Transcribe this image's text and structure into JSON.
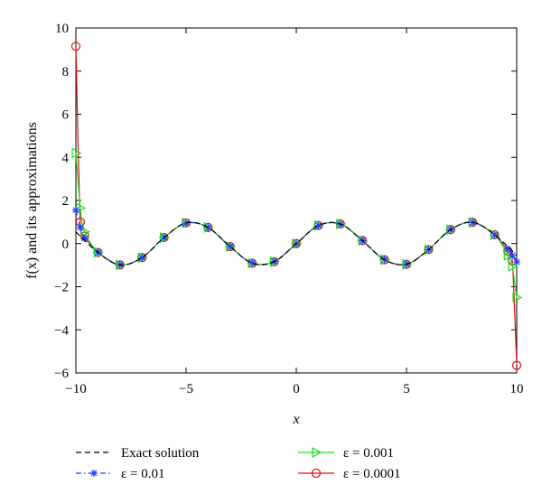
{
  "chart_data": {
    "type": "line",
    "title": "",
    "xlabel": "x",
    "ylabel": "f(x) and its approximations",
    "xlim": [
      -10,
      10
    ],
    "ylim": [
      -6,
      10
    ],
    "xticks": [
      -10,
      -5,
      0,
      5,
      10
    ],
    "yticks": [
      -6,
      -4,
      -2,
      0,
      2,
      4,
      6,
      8,
      10
    ],
    "xtick_labels": [
      "−10",
      "−5",
      "0",
      "5",
      "10"
    ],
    "ytick_labels": [
      "−6",
      "−4",
      "−2",
      "0",
      "2",
      "4",
      "6",
      "8",
      "10"
    ],
    "grid": false,
    "legend_position": "bottom",
    "series": [
      {
        "name": "Exact solution",
        "color": "#000000",
        "dash": "dashed",
        "marker": "none",
        "x": [
          -10,
          -9,
          -8,
          -7,
          -6,
          -5,
          -4,
          -3,
          -2,
          -1,
          0,
          1,
          2,
          3,
          4,
          5,
          6,
          7,
          8,
          9,
          10
        ],
        "y": [
          0.54,
          -0.41,
          -0.99,
          -0.65,
          0.28,
          0.96,
          0.75,
          -0.14,
          -0.91,
          -0.84,
          0,
          0.84,
          0.91,
          0.14,
          -0.75,
          -0.96,
          -0.28,
          0.65,
          0.99,
          0.41,
          -0.54
        ]
      },
      {
        "name": "ε = 0.01",
        "color": "#1f3fff",
        "dash": "dashdot",
        "marker": "star",
        "x": [
          -10,
          -9.8,
          -9.6,
          -9,
          -8,
          -7,
          -6,
          -5,
          -4,
          -3,
          -2,
          -1,
          0,
          1,
          2,
          3,
          4,
          5,
          6,
          7,
          8,
          9,
          9.6,
          9.8,
          10
        ],
        "y": [
          1.55,
          0.75,
          0.25,
          -0.4,
          -0.98,
          -0.65,
          0.28,
          0.95,
          0.74,
          -0.14,
          -0.9,
          -0.83,
          0,
          0.83,
          0.9,
          0.14,
          -0.74,
          -0.95,
          -0.28,
          0.65,
          0.98,
          0.4,
          -0.25,
          -0.55,
          -0.85
        ]
      },
      {
        "name": "ε = 0.001",
        "color": "#22dd22",
        "dash": "solid",
        "marker": "triangle-right",
        "x": [
          -10,
          -9.8,
          -9.6,
          -9,
          -8,
          -7,
          -6,
          -5,
          -4,
          -3,
          -2,
          -1,
          0,
          1,
          2,
          3,
          4,
          5,
          6,
          7,
          8,
          9,
          9.6,
          9.8,
          10
        ],
        "y": [
          4.2,
          1.65,
          0.55,
          -0.4,
          -0.99,
          -0.65,
          0.28,
          0.96,
          0.75,
          -0.14,
          -0.91,
          -0.84,
          0,
          0.84,
          0.91,
          0.14,
          -0.75,
          -0.96,
          -0.28,
          0.65,
          0.99,
          0.41,
          -0.55,
          -1.05,
          -2.5
        ]
      },
      {
        "name": "ε = 0.0001",
        "color": "#dd1111",
        "dash": "solid",
        "marker": "circle",
        "x": [
          -10,
          -9.8,
          -9.6,
          -9,
          -8,
          -7,
          -6,
          -5,
          -4,
          -3,
          -2,
          -1,
          0,
          1,
          2,
          3,
          4,
          5,
          6,
          7,
          8,
          9,
          9.6,
          9.8,
          10
        ],
        "y": [
          9.15,
          1.0,
          0.35,
          -0.41,
          -0.99,
          -0.65,
          0.28,
          0.96,
          0.75,
          -0.14,
          -0.91,
          -0.84,
          0,
          0.84,
          0.91,
          0.14,
          -0.75,
          -0.96,
          -0.28,
          0.65,
          0.99,
          0.41,
          -0.35,
          -0.8,
          -5.65
        ]
      }
    ]
  }
}
